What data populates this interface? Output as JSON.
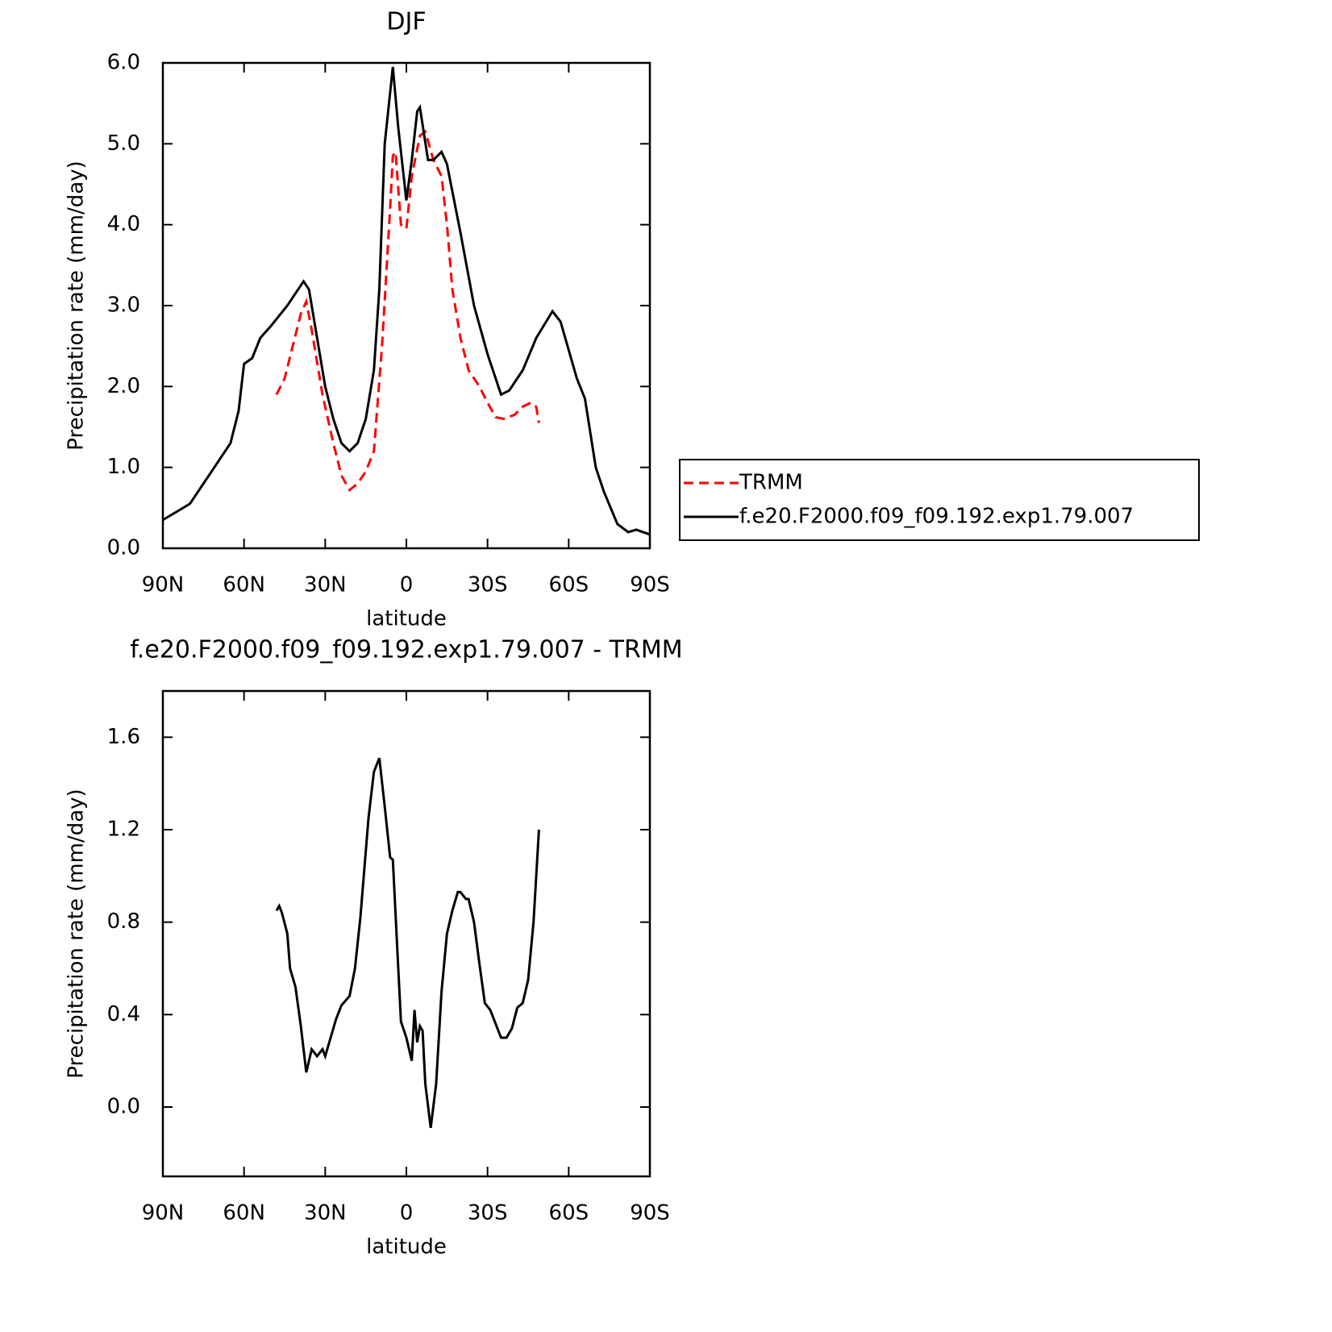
{
  "chart_data": [
    {
      "type": "line",
      "title": "DJF",
      "xlabel": "latitude",
      "ylabel": "Precipitation rate (mm/day)",
      "xlim": [
        90,
        -90
      ],
      "xticks": [
        {
          "value": 90,
          "label": "90N"
        },
        {
          "value": 60,
          "label": "60N"
        },
        {
          "value": 30,
          "label": "30N"
        },
        0,
        {
          "value": -30,
          "label": "30S"
        },
        {
          "value": -60,
          "label": "60S"
        },
        {
          "value": -90,
          "label": "90S"
        }
      ],
      "ylim": [
        0,
        6
      ],
      "yticks": [
        {
          "value": 0,
          "label": "0.0"
        },
        {
          "value": 1,
          "label": "1.0"
        },
        {
          "value": 2,
          "label": "2.0"
        },
        {
          "value": 3,
          "label": "3.0"
        },
        {
          "value": 4,
          "label": "4.0"
        },
        {
          "value": 5,
          "label": "5.0"
        },
        {
          "value": 6,
          "label": "6.0"
        }
      ],
      "legend": "right",
      "series": [
        {
          "name": "TRMM",
          "color": "#ff0000",
          "linestyle": "dashed",
          "x": [
            48,
            45,
            42,
            39,
            37,
            35,
            31,
            27,
            24,
            21,
            18,
            15,
            12,
            9,
            6,
            5,
            4,
            2,
            0,
            -2,
            -5,
            -7,
            -10,
            -13,
            -15,
            -17,
            -20,
            -23,
            -27,
            -30,
            -33,
            -36,
            -40,
            -43,
            -46,
            -48,
            -49
          ],
          "values": [
            1.9,
            2.1,
            2.5,
            2.9,
            3.05,
            2.7,
            1.9,
            1.3,
            0.9,
            0.72,
            0.8,
            0.95,
            1.2,
            2.5,
            4.2,
            4.85,
            4.9,
            4.0,
            3.95,
            4.6,
            5.1,
            5.15,
            4.8,
            4.6,
            4.0,
            3.2,
            2.6,
            2.2,
            2.0,
            1.8,
            1.62,
            1.6,
            1.65,
            1.75,
            1.8,
            1.75,
            1.55
          ]
        },
        {
          "name": "f.e20.F2000.f09_f09.192.exp1.79.007",
          "color": "#000000",
          "linestyle": "solid",
          "x": [
            90,
            85,
            80,
            75,
            70,
            65,
            62,
            60,
            57,
            54,
            50,
            44,
            38,
            36,
            33,
            30,
            27,
            24,
            21,
            18,
            15,
            12,
            10,
            8,
            5,
            3,
            0,
            -2,
            -4,
            -5,
            -8,
            -10,
            -13,
            -15,
            -20,
            -25,
            -30,
            -35,
            -38,
            -43,
            -48,
            -54,
            -57,
            -63,
            -66,
            -70,
            -73,
            -78,
            -82,
            -85,
            -90
          ],
          "values": [
            0.35,
            0.45,
            0.55,
            0.8,
            1.05,
            1.3,
            1.7,
            2.28,
            2.35,
            2.6,
            2.75,
            3.0,
            3.3,
            3.2,
            2.6,
            2.0,
            1.6,
            1.3,
            1.2,
            1.3,
            1.6,
            2.2,
            3.2,
            5.0,
            5.95,
            5.2,
            4.3,
            4.8,
            5.4,
            5.45,
            4.8,
            4.8,
            4.9,
            4.75,
            3.9,
            3.0,
            2.4,
            1.9,
            1.95,
            2.2,
            2.6,
            2.93,
            2.8,
            2.1,
            1.85,
            1.0,
            0.7,
            0.3,
            0.2,
            0.23,
            0.17
          ]
        }
      ]
    },
    {
      "type": "line",
      "title": "f.e20.F2000.f09_f09.192.exp1.79.007 - TRMM",
      "xlabel": "latitude",
      "ylabel": "Precipitation rate (mm/day)",
      "xlim": [
        90,
        -90
      ],
      "xticks": [
        {
          "value": 90,
          "label": "90N"
        },
        {
          "value": 60,
          "label": "60N"
        },
        {
          "value": 30,
          "label": "30N"
        },
        0,
        {
          "value": -30,
          "label": "30S"
        },
        {
          "value": -60,
          "label": "60S"
        },
        {
          "value": -90,
          "label": "90S"
        }
      ],
      "ylim": [
        -0.3,
        1.8
      ],
      "yticks": [
        {
          "value": 0,
          "label": "0.0"
        },
        0.4,
        0.8,
        1.2,
        1.6
      ],
      "series": [
        {
          "color": "#000000",
          "linestyle": "solid",
          "x": [
            48,
            47,
            46,
            44,
            43,
            41,
            39,
            37,
            35,
            33,
            31,
            30,
            28,
            26,
            24,
            21,
            19,
            17,
            14,
            12,
            10,
            8,
            6,
            5,
            3,
            2,
            0,
            -2,
            -3,
            -4,
            -5,
            -6,
            -7,
            -9,
            -11,
            -13,
            -15,
            -17,
            -19,
            -20,
            -22,
            -23,
            -25,
            -27,
            -29,
            -31,
            -33,
            -35,
            -37,
            -39,
            -41,
            -43,
            -45,
            -47,
            -49
          ],
          "values": [
            0.85,
            0.87,
            0.84,
            0.75,
            0.6,
            0.52,
            0.35,
            0.15,
            0.25,
            0.22,
            0.25,
            0.22,
            0.3,
            0.38,
            0.44,
            0.48,
            0.6,
            0.82,
            1.25,
            1.45,
            1.51,
            1.3,
            1.08,
            1.07,
            0.6,
            0.37,
            0.3,
            0.2,
            0.42,
            0.28,
            0.35,
            0.33,
            0.1,
            -0.09,
            0.1,
            0.5,
            0.75,
            0.85,
            0.93,
            0.93,
            0.9,
            0.9,
            0.8,
            0.62,
            0.45,
            0.42,
            0.36,
            0.3,
            0.3,
            0.34,
            0.43,
            0.45,
            0.55,
            0.8,
            1.2
          ]
        }
      ]
    }
  ]
}
